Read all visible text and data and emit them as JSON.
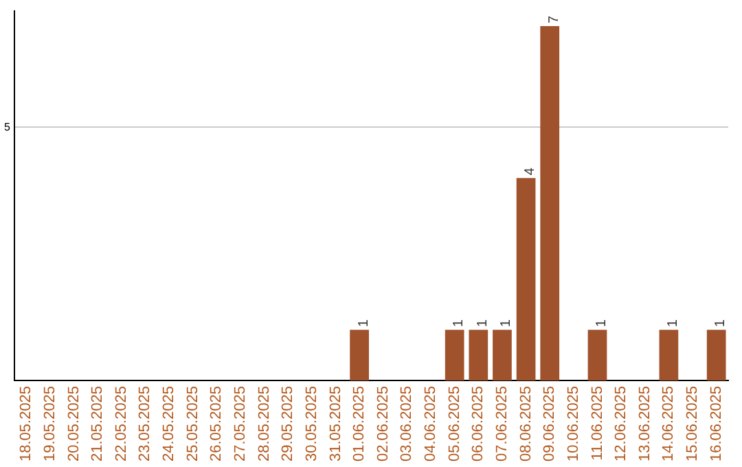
{
  "chart_data": {
    "type": "bar",
    "categories": [
      "18.05.2025",
      "19.05.2025",
      "20.05.2025",
      "21.05.2025",
      "22.05.2025",
      "23.05.2025",
      "24.05.2025",
      "25.05.2025",
      "26.05.2025",
      "27.05.2025",
      "28.05.2025",
      "29.05.2025",
      "30.05.2025",
      "31.05.2025",
      "01.06.2025",
      "02.06.2025",
      "03.06.2025",
      "04.06.2025",
      "05.06.2025",
      "06.06.2025",
      "07.06.2025",
      "08.06.2025",
      "09.06.2025",
      "10.06.2025",
      "11.06.2025",
      "12.06.2025",
      "13.06.2025",
      "14.06.2025",
      "15.06.2025",
      "16.06.2025"
    ],
    "values": [
      null,
      null,
      null,
      null,
      null,
      null,
      null,
      null,
      null,
      null,
      null,
      null,
      null,
      null,
      1,
      null,
      null,
      null,
      1,
      1,
      1,
      4,
      7,
      null,
      1,
      null,
      null,
      1,
      null,
      1
    ],
    "data_labels": true,
    "color": "#a0522d",
    "ylim": [
      0,
      7.3
    ],
    "yticks": [
      5
    ],
    "grid": "y",
    "legend": false
  }
}
